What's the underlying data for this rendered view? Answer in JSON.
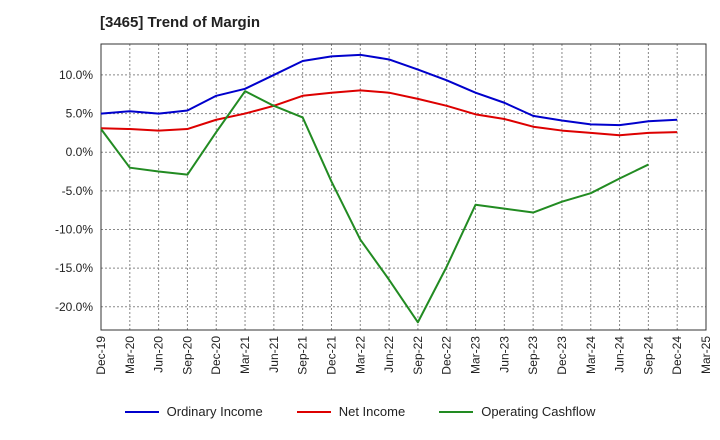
{
  "chart_data": {
    "type": "line",
    "title": "[3465]  Trend of Margin",
    "xlabel": "",
    "ylabel": "",
    "categories": [
      "Dec-19",
      "Mar-20",
      "Jun-20",
      "Sep-20",
      "Dec-20",
      "Mar-21",
      "Jun-21",
      "Sep-21",
      "Dec-21",
      "Mar-22",
      "Jun-22",
      "Sep-22",
      "Dec-22",
      "Mar-23",
      "Jun-23",
      "Sep-23",
      "Dec-23",
      "Mar-24",
      "Jun-24",
      "Sep-24",
      "Dec-24",
      "Mar-25"
    ],
    "ylim": [
      -23,
      14
    ],
    "yticks": [
      10,
      5,
      0,
      -5,
      -10,
      -15,
      -20
    ],
    "ytick_labels": [
      "10.0%",
      "5.0%",
      "0.0%",
      "-5.0%",
      "-10.0%",
      "-15.0%",
      "-20.0%"
    ],
    "grid": true,
    "legend_position": "bottom",
    "series": [
      {
        "name": "Ordinary Income",
        "color": "#0000cc",
        "values": [
          5.0,
          5.3,
          5.0,
          5.4,
          7.3,
          8.2,
          10.0,
          11.8,
          12.4,
          12.6,
          12.0,
          10.7,
          9.3,
          7.7,
          6.4,
          4.7,
          4.1,
          3.6,
          3.5,
          4.0,
          4.2,
          null
        ]
      },
      {
        "name": "Net Income",
        "color": "#dd0000",
        "values": [
          3.1,
          3.0,
          2.8,
          3.0,
          4.2,
          5.0,
          6.0,
          7.3,
          7.7,
          8.0,
          7.7,
          6.9,
          6.0,
          4.9,
          4.3,
          3.3,
          2.8,
          2.5,
          2.2,
          2.5,
          2.6,
          null
        ]
      },
      {
        "name": "Operating Cashflow",
        "color": "#228b22",
        "values": [
          3.0,
          -2.0,
          -2.5,
          -2.9,
          2.6,
          7.9,
          6.0,
          4.5,
          -3.8,
          -11.3,
          -16.5,
          -22.0,
          -14.8,
          -6.8,
          -7.3,
          -7.8,
          -6.4,
          -5.3,
          -3.4,
          -1.6,
          null,
          null
        ]
      }
    ]
  }
}
